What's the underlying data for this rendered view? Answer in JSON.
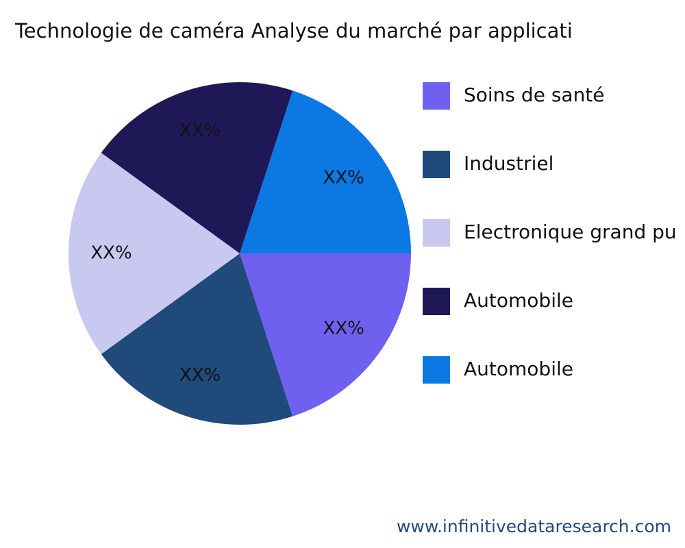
{
  "chart_data": {
    "type": "pie",
    "title": "Technologie de caméra Analyse du marché par applicati",
    "categories": [
      "Soins de santé",
      "Industriel",
      "Electronique grand pu",
      "Automobile",
      "Automobile"
    ],
    "values": [
      20,
      20,
      20,
      20,
      20
    ],
    "value_labels": [
      "XX%",
      "XX%",
      "XX%",
      "XX%",
      "XX%"
    ],
    "colors": [
      "#7060f0",
      "#1f4a7a",
      "#c9c8f0",
      "#1e1856",
      "#0b78e3"
    ],
    "legend": "right",
    "watermark": "www.infinitivedataresearch.com"
  }
}
